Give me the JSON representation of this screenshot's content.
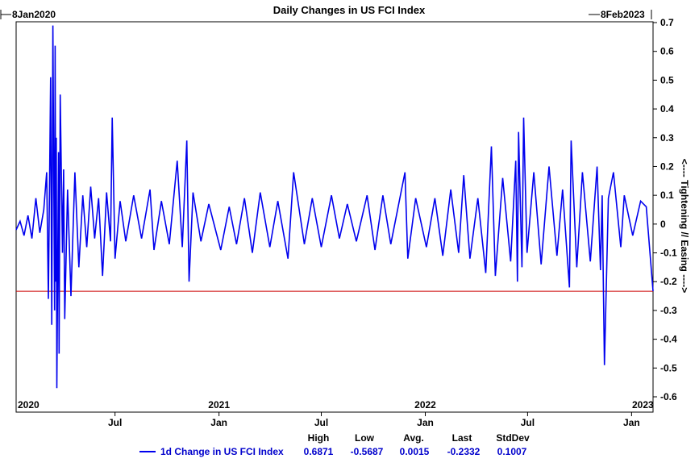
{
  "chart_data": {
    "type": "line",
    "title": "Daily Changes in US FCI Index",
    "start_label": "8Jan2020",
    "end_label": "8Feb2023",
    "ylabel": "<---- Tightening // Easing ---->",
    "ylim": [
      -0.6,
      0.7
    ],
    "yticks": [
      0.7,
      0.6,
      0.5,
      0.4,
      0.3,
      0.2,
      0.1,
      0,
      -0.1,
      -0.2,
      -0.3,
      -0.4,
      -0.5,
      -0.6
    ],
    "ytick_labels": [
      "0.7",
      "0.6",
      "0.5",
      "0.4",
      "0.3",
      "0.2",
      "0.1",
      "0",
      "-0.1",
      "-0.2",
      "-0.3",
      "-0.4",
      "-0.5",
      "-0.6"
    ],
    "xlim": [
      "2020-01-08",
      "2023-02-08"
    ],
    "year_labels": [
      {
        "date": "2020-01-08",
        "label": "2020"
      },
      {
        "date": "2021-01-01",
        "label": "2021"
      },
      {
        "date": "2022-01-01",
        "label": "2022"
      },
      {
        "date": "2023-01-01",
        "label": "2023"
      }
    ],
    "month_ticks": [
      {
        "date": "2020-07-01",
        "label": "Jul"
      },
      {
        "date": "2021-01-01",
        "label": "Jan"
      },
      {
        "date": "2021-07-01",
        "label": "Jul"
      },
      {
        "date": "2022-01-01",
        "label": "Jan"
      },
      {
        "date": "2022-07-01",
        "label": "Jul"
      },
      {
        "date": "2023-01-01",
        "label": "Jan"
      }
    ],
    "reference_line": {
      "value": -0.2332,
      "color": "#cc0000"
    },
    "series": [
      {
        "name": "1d Change in US FCI Index",
        "color": "#0000ee",
        "points": [
          [
            "2020-01-08",
            -0.02
          ],
          [
            "2020-01-15",
            0.01
          ],
          [
            "2020-01-22",
            -0.04
          ],
          [
            "2020-01-29",
            0.03
          ],
          [
            "2020-02-05",
            -0.05
          ],
          [
            "2020-02-12",
            0.09
          ],
          [
            "2020-02-19",
            -0.03
          ],
          [
            "2020-02-26",
            0.05
          ],
          [
            "2020-03-02",
            0.18
          ],
          [
            "2020-03-05",
            -0.26
          ],
          [
            "2020-03-09",
            0.51
          ],
          [
            "2020-03-11",
            -0.35
          ],
          [
            "2020-03-13",
            0.69
          ],
          [
            "2020-03-16",
            -0.3
          ],
          [
            "2020-03-17",
            0.62
          ],
          [
            "2020-03-18",
            -0.2
          ],
          [
            "2020-03-19",
            0.3
          ],
          [
            "2020-03-20",
            -0.57
          ],
          [
            "2020-03-23",
            0.25
          ],
          [
            "2020-03-24",
            -0.45
          ],
          [
            "2020-03-26",
            0.45
          ],
          [
            "2020-03-30",
            -0.1
          ],
          [
            "2020-04-01",
            0.19
          ],
          [
            "2020-04-03",
            -0.33
          ],
          [
            "2020-04-08",
            0.12
          ],
          [
            "2020-04-14",
            -0.25
          ],
          [
            "2020-04-21",
            0.18
          ],
          [
            "2020-04-28",
            -0.15
          ],
          [
            "2020-05-05",
            0.1
          ],
          [
            "2020-05-12",
            -0.08
          ],
          [
            "2020-05-19",
            0.13
          ],
          [
            "2020-05-26",
            -0.05
          ],
          [
            "2020-06-02",
            0.09
          ],
          [
            "2020-06-09",
            -0.18
          ],
          [
            "2020-06-16",
            0.11
          ],
          [
            "2020-06-23",
            -0.06
          ],
          [
            "2020-06-26",
            0.37
          ],
          [
            "2020-07-01",
            -0.12
          ],
          [
            "2020-07-10",
            0.08
          ],
          [
            "2020-07-20",
            -0.06
          ],
          [
            "2020-08-03",
            0.1
          ],
          [
            "2020-08-17",
            -0.05
          ],
          [
            "2020-09-01",
            0.12
          ],
          [
            "2020-09-08",
            -0.09
          ],
          [
            "2020-09-21",
            0.08
          ],
          [
            "2020-10-05",
            -0.07
          ],
          [
            "2020-10-19",
            0.22
          ],
          [
            "2020-10-28",
            -0.08
          ],
          [
            "2020-11-05",
            0.29
          ],
          [
            "2020-11-09",
            -0.2
          ],
          [
            "2020-11-16",
            0.11
          ],
          [
            "2020-11-30",
            -0.06
          ],
          [
            "2020-12-14",
            0.07
          ],
          [
            "2021-01-04",
            -0.09
          ],
          [
            "2021-01-19",
            0.06
          ],
          [
            "2021-02-01",
            -0.07
          ],
          [
            "2021-02-15",
            0.09
          ],
          [
            "2021-03-01",
            -0.1
          ],
          [
            "2021-03-15",
            0.11
          ],
          [
            "2021-04-01",
            -0.08
          ],
          [
            "2021-04-15",
            0.08
          ],
          [
            "2021-05-03",
            -0.12
          ],
          [
            "2021-05-13",
            0.18
          ],
          [
            "2021-06-01",
            -0.07
          ],
          [
            "2021-06-15",
            0.09
          ],
          [
            "2021-07-01",
            -0.08
          ],
          [
            "2021-07-19",
            0.1
          ],
          [
            "2021-08-02",
            -0.05
          ],
          [
            "2021-08-16",
            0.07
          ],
          [
            "2021-09-01",
            -0.06
          ],
          [
            "2021-09-20",
            0.1
          ],
          [
            "2021-10-04",
            -0.09
          ],
          [
            "2021-10-18",
            0.1
          ],
          [
            "2021-11-01",
            -0.07
          ],
          [
            "2021-11-26",
            0.18
          ],
          [
            "2021-12-01",
            -0.12
          ],
          [
            "2021-12-15",
            0.09
          ],
          [
            "2022-01-03",
            -0.08
          ],
          [
            "2022-01-18",
            0.09
          ],
          [
            "2022-02-01",
            -0.11
          ],
          [
            "2022-02-15",
            0.12
          ],
          [
            "2022-03-01",
            -0.1
          ],
          [
            "2022-03-10",
            0.17
          ],
          [
            "2022-03-21",
            -0.12
          ],
          [
            "2022-04-04",
            0.09
          ],
          [
            "2022-04-18",
            -0.17
          ],
          [
            "2022-04-28",
            0.27
          ],
          [
            "2022-05-05",
            -0.18
          ],
          [
            "2022-05-18",
            0.16
          ],
          [
            "2022-06-01",
            -0.13
          ],
          [
            "2022-06-10",
            0.22
          ],
          [
            "2022-06-13",
            -0.2
          ],
          [
            "2022-06-15",
            0.32
          ],
          [
            "2022-06-21",
            -0.15
          ],
          [
            "2022-06-24",
            0.37
          ],
          [
            "2022-06-30",
            -0.1
          ],
          [
            "2022-07-12",
            0.18
          ],
          [
            "2022-07-25",
            -0.14
          ],
          [
            "2022-08-08",
            0.2
          ],
          [
            "2022-08-22",
            -0.11
          ],
          [
            "2022-09-01",
            0.12
          ],
          [
            "2022-09-13",
            -0.22
          ],
          [
            "2022-09-16",
            0.29
          ],
          [
            "2022-09-26",
            -0.15
          ],
          [
            "2022-10-06",
            0.18
          ],
          [
            "2022-10-20",
            -0.13
          ],
          [
            "2022-11-01",
            0.2
          ],
          [
            "2022-11-07",
            -0.16
          ],
          [
            "2022-11-10",
            0.1
          ],
          [
            "2022-11-14",
            -0.49
          ],
          [
            "2022-11-21",
            0.09
          ],
          [
            "2022-11-30",
            0.18
          ],
          [
            "2022-12-13",
            -0.08
          ],
          [
            "2022-12-19",
            0.1
          ],
          [
            "2023-01-03",
            -0.04
          ],
          [
            "2023-01-17",
            0.08
          ],
          [
            "2023-01-27",
            0.06
          ],
          [
            "2023-02-08",
            -0.2332
          ]
        ]
      }
    ]
  },
  "stats": {
    "headers": [
      "High",
      "Low",
      "Avg.",
      "Last",
      "StdDev"
    ],
    "legend_label": "1d Change in US FCI Index",
    "high": "0.6871",
    "low": "-0.5687",
    "avg": "0.0015",
    "last": "-0.2332",
    "stddev": "0.1007"
  }
}
